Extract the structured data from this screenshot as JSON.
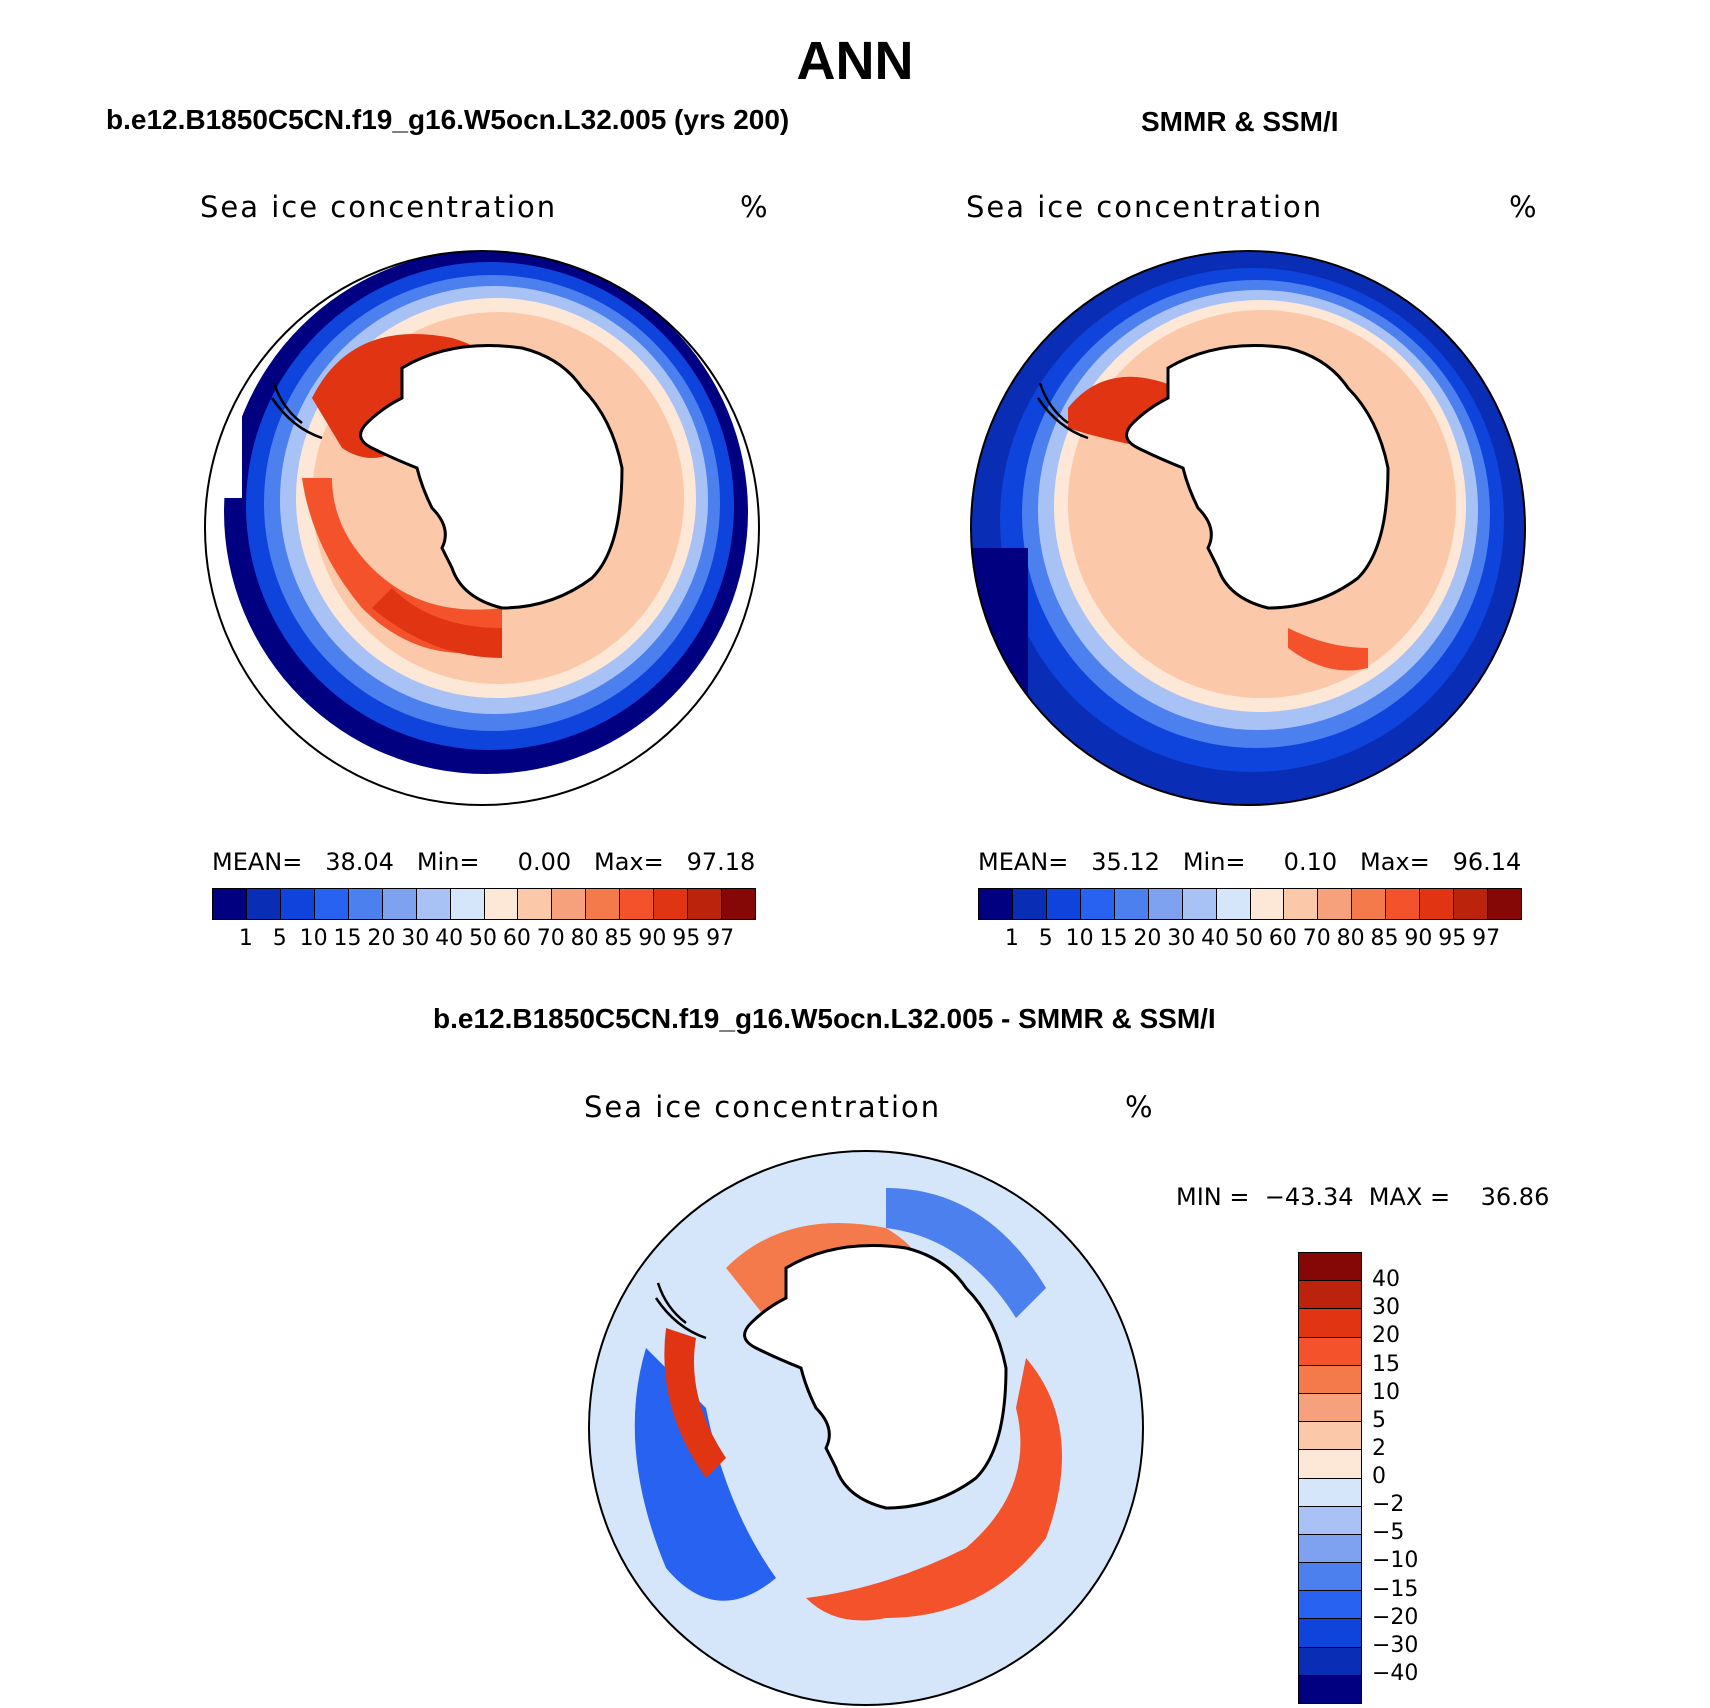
{
  "figure": {
    "title": "ANN",
    "panels": [
      {
        "id": "model",
        "subtitle": "b.e12.B1850C5CN.f19_g16.W5ocn.L32.005 (yrs 200)",
        "variable_label": "Sea ice concentration",
        "units": "%",
        "stats": "MEAN=   38.04   Min=     0.00   Max=   97.18"
      },
      {
        "id": "obs",
        "subtitle": "SMMR & SSM/I",
        "variable_label": "Sea ice concentration",
        "units": "%",
        "stats": "MEAN=   35.12   Min=     0.10   Max=   96.14"
      },
      {
        "id": "diff",
        "subtitle": "b.e12.B1850C5CN.f19_g16.W5ocn.L32.005 - SMMR & SSM/I",
        "variable_label": "Sea ice concentration",
        "units": "%",
        "stats": "MIN =  −43.34  MAX =    36.86"
      }
    ]
  },
  "colorbar_concentration": {
    "labels": [
      "1",
      "5",
      "10",
      "15",
      "20",
      "30",
      "40",
      "50",
      "60",
      "70",
      "80",
      "85",
      "90",
      "95",
      "97"
    ],
    "colors": [
      "#000080",
      "#0a2db5",
      "#0e44dc",
      "#2762f0",
      "#4c80ee",
      "#7ea2f0",
      "#a9c2f5",
      "#d5e6fb",
      "#fde8d8",
      "#fbc8aa",
      "#f6a07c",
      "#f57a4b",
      "#f3522a",
      "#e03412",
      "#bc230d",
      "#850706"
    ]
  },
  "colorbar_difference": {
    "labels": [
      "40",
      "30",
      "20",
      "15",
      "10",
      "5",
      "2",
      "0",
      "−2",
      "−5",
      "−10",
      "−15",
      "−20",
      "−30",
      "−40"
    ],
    "colors": [
      "#850706",
      "#bc230d",
      "#e03412",
      "#f3522a",
      "#f57a4b",
      "#f6a07c",
      "#fbc8aa",
      "#fde8d8",
      "#d5e6fb",
      "#a9c2f5",
      "#7ea2f0",
      "#4c80ee",
      "#2762f0",
      "#0e44dc",
      "#0a2db5",
      "#000080"
    ]
  }
}
